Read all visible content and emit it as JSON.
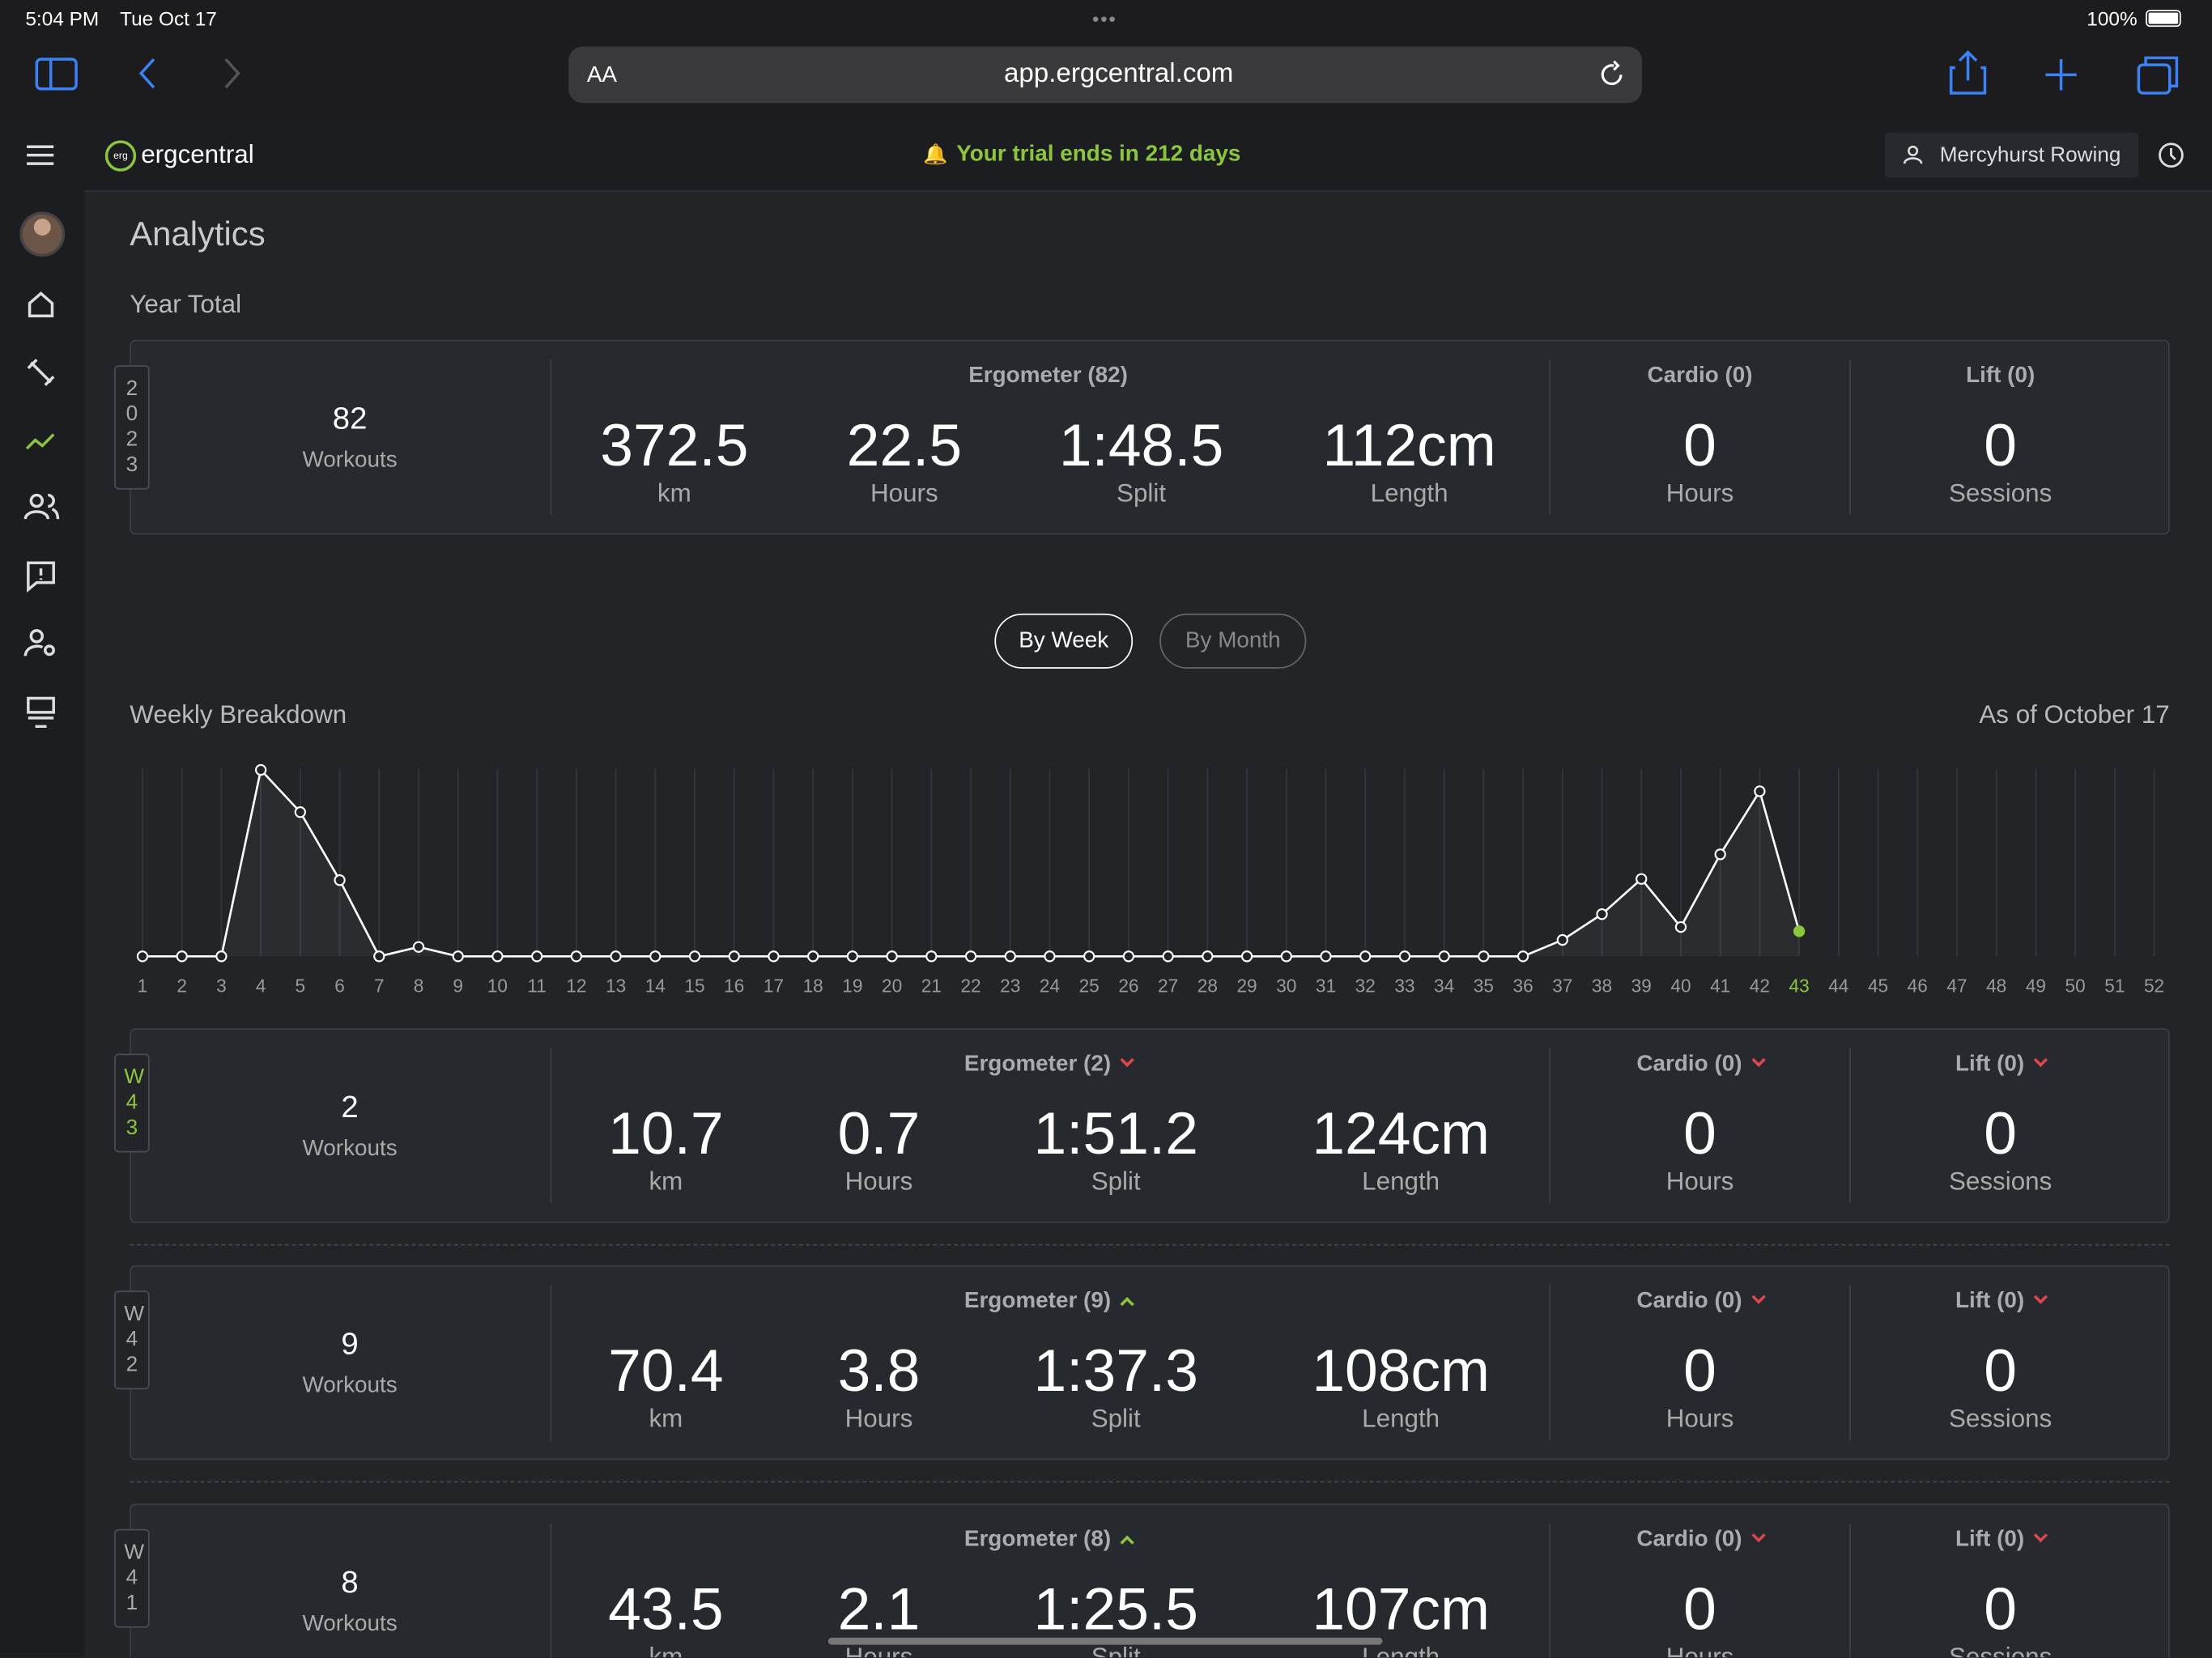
{
  "status_bar": {
    "time": "5:04 PM",
    "date": "Tue Oct 17",
    "battery": "100%"
  },
  "browser": {
    "text_size": "AA",
    "url": "app.ergcentral.com"
  },
  "header": {
    "logo_badge": "erg",
    "logo": "ergcentral",
    "trial": "Your trial ends in 212 days",
    "team": "Mercyhurst Rowing"
  },
  "page": {
    "title": "Analytics",
    "year_heading": "Year Total",
    "toggles": [
      "By Week",
      "By Month"
    ],
    "breakdown_heading": "Weekly Breakdown",
    "as_of": "As of October 17"
  },
  "year_card": {
    "tag": "2023",
    "workouts": "82",
    "workouts_label": "Workouts",
    "groups": [
      {
        "title": "Ergometer (82)",
        "stats": [
          {
            "value": "372.5",
            "label": "km"
          },
          {
            "value": "22.5",
            "label": "Hours"
          },
          {
            "value": "1:48.5",
            "label": "Split"
          },
          {
            "value": "112cm",
            "label": "Length"
          }
        ]
      },
      {
        "title": "Cardio (0)",
        "stats": [
          {
            "value": "0",
            "label": "Hours"
          }
        ]
      },
      {
        "title": "Lift (0)",
        "stats": [
          {
            "value": "0",
            "label": "Sessions"
          }
        ]
      }
    ]
  },
  "chart_data": {
    "type": "line",
    "categories": [
      "1",
      "2",
      "3",
      "4",
      "5",
      "6",
      "7",
      "8",
      "9",
      "10",
      "11",
      "12",
      "13",
      "14",
      "15",
      "16",
      "17",
      "18",
      "19",
      "20",
      "21",
      "22",
      "23",
      "24",
      "25",
      "26",
      "27",
      "28",
      "29",
      "30",
      "31",
      "32",
      "33",
      "34",
      "35",
      "36",
      "37",
      "38",
      "39",
      "40",
      "41",
      "42",
      "43",
      "44",
      "45",
      "46",
      "47",
      "48",
      "49",
      "50",
      "51",
      "52"
    ],
    "values": [
      0,
      0,
      0,
      79.5,
      61.5,
      32.5,
      0,
      4,
      0,
      0,
      0,
      0,
      0,
      0,
      0,
      0,
      0,
      0,
      0,
      0,
      0,
      0,
      0,
      0,
      0,
      0,
      0,
      0,
      0,
      0,
      0,
      0,
      0,
      0,
      0,
      0,
      7,
      18,
      33,
      12.5,
      43.5,
      70.4,
      10.7,
      null,
      null,
      null,
      null,
      null,
      null,
      null,
      null,
      null
    ],
    "ylim": [
      0,
      80
    ],
    "color": "#ffffff",
    "highlight_category": "43",
    "highlight_color": "#8cc63f",
    "grid": true
  },
  "week_cards": [
    {
      "tag": "W43",
      "current": true,
      "workouts": "2",
      "workouts_label": "Workouts",
      "groups": [
        {
          "title": "Ergometer (2)",
          "trend": "down",
          "stats": [
            {
              "value": "10.7",
              "label": "km"
            },
            {
              "value": "0.7",
              "label": "Hours"
            },
            {
              "value": "1:51.2",
              "label": "Split"
            },
            {
              "value": "124cm",
              "label": "Length"
            }
          ]
        },
        {
          "title": "Cardio (0)",
          "trend": "down",
          "stats": [
            {
              "value": "0",
              "label": "Hours"
            }
          ]
        },
        {
          "title": "Lift (0)",
          "trend": "down",
          "stats": [
            {
              "value": "0",
              "label": "Sessions"
            }
          ]
        }
      ]
    },
    {
      "tag": "W42",
      "workouts": "9",
      "workouts_label": "Workouts",
      "groups": [
        {
          "title": "Ergometer (9)",
          "trend": "up",
          "stats": [
            {
              "value": "70.4",
              "label": "km"
            },
            {
              "value": "3.8",
              "label": "Hours"
            },
            {
              "value": "1:37.3",
              "label": "Split"
            },
            {
              "value": "108cm",
              "label": "Length"
            }
          ]
        },
        {
          "title": "Cardio (0)",
          "trend": "down",
          "stats": [
            {
              "value": "0",
              "label": "Hours"
            }
          ]
        },
        {
          "title": "Lift (0)",
          "trend": "down",
          "stats": [
            {
              "value": "0",
              "label": "Sessions"
            }
          ]
        }
      ]
    },
    {
      "tag": "W41",
      "workouts": "8",
      "workouts_label": "Workouts",
      "groups": [
        {
          "title": "Ergometer (8)",
          "trend": "up",
          "stats": [
            {
              "value": "43.5",
              "label": "km"
            },
            {
              "value": "2.1",
              "label": "Hours"
            },
            {
              "value": "1:25.5",
              "label": "Split"
            },
            {
              "value": "107cm",
              "label": "Length"
            }
          ]
        },
        {
          "title": "Cardio (0)",
          "trend": "down",
          "stats": [
            {
              "value": "0",
              "label": "Hours"
            }
          ]
        },
        {
          "title": "Lift (0)",
          "trend": "down",
          "stats": [
            {
              "value": "0",
              "label": "Sessions"
            }
          ]
        }
      ]
    }
  ]
}
